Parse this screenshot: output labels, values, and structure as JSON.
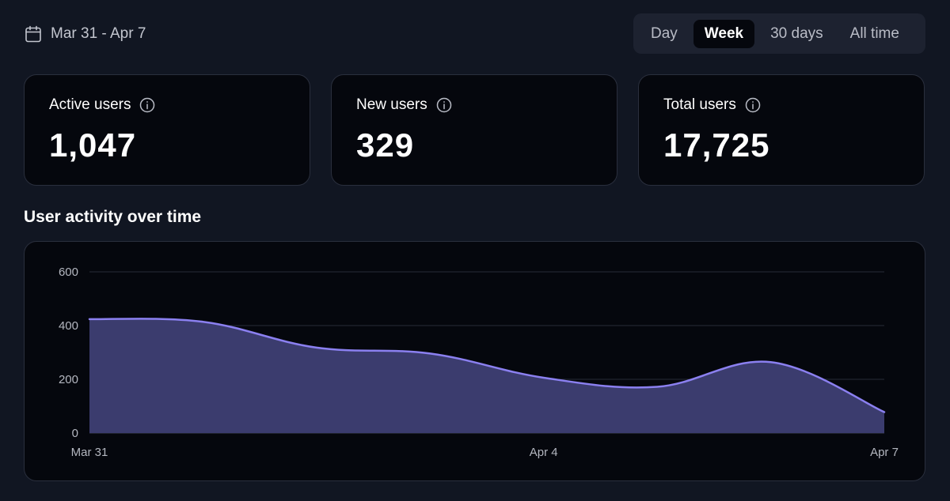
{
  "date_range": {
    "icon": "calendar-icon",
    "label": "Mar 31 - Apr 7"
  },
  "range_tabs": {
    "items": [
      {
        "label": "Day"
      },
      {
        "label": "Week",
        "active": true
      },
      {
        "label": "30 days"
      },
      {
        "label": "All time"
      }
    ]
  },
  "stats": [
    {
      "label": "Active users",
      "value": "1,047",
      "icon": "info-icon"
    },
    {
      "label": "New users",
      "value": "329",
      "icon": "info-icon"
    },
    {
      "label": "Total users",
      "value": "17,725",
      "icon": "info-icon"
    }
  ],
  "section_title": "User activity over time",
  "colors": {
    "accent_line": "#8b80f0",
    "accent_fill": "#3b3c6e",
    "background": "#111622",
    "card": "#05070d"
  },
  "chart_data": {
    "type": "area",
    "title": "User activity over time",
    "xlabel": "",
    "ylabel": "",
    "x": [
      "Mar 31",
      "Apr 1",
      "Apr 2",
      "Apr 3",
      "Apr 4",
      "Apr 5",
      "Apr 6",
      "Apr 7"
    ],
    "x_tick_labels": [
      "Mar 31",
      "Apr 4",
      "Apr 7"
    ],
    "series": [
      {
        "name": "Active users",
        "values": [
          424,
          414,
          318,
          296,
          206,
          172,
          264,
          78
        ]
      }
    ],
    "yticks": [
      "0",
      "200",
      "400",
      "600"
    ],
    "ylim": [
      0,
      600
    ],
    "grid": true
  }
}
